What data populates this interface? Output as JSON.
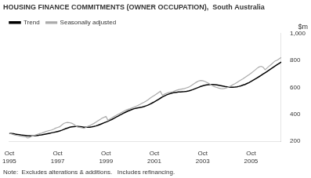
{
  "chart_data": {
    "type": "line",
    "title": "HOUSING FINANCE COMMITMENTS (OWNER OCCUPATION),  South Australia",
    "ylabel": "$m",
    "annotations": [
      "Note:  Excludes alterations & additions.   Includes refinancing."
    ],
    "categories": [
      "Oct\n1995",
      null,
      null,
      null,
      null,
      null,
      null,
      null,
      null,
      null,
      null,
      null,
      null,
      null,
      null,
      null,
      null,
      null,
      null,
      null,
      null,
      null,
      null,
      null,
      "Oct\n1997",
      null,
      null,
      null,
      null,
      null,
      null,
      null,
      null,
      null,
      null,
      null,
      null,
      null,
      null,
      null,
      null,
      null,
      null,
      null,
      null,
      null,
      null,
      null,
      "Oct\n1999",
      null,
      null,
      null,
      null,
      null,
      null,
      null,
      null,
      null,
      null,
      null,
      null,
      null,
      null,
      null,
      null,
      null,
      null,
      null,
      null,
      null,
      null,
      null,
      "Oct\n2001",
      null,
      null,
      null,
      null,
      null,
      null,
      null,
      null,
      null,
      null,
      null,
      null,
      null,
      null,
      null,
      null,
      null,
      null,
      null,
      null,
      null,
      null,
      null,
      "Oct\n2003",
      null,
      null,
      null,
      null,
      null,
      null,
      null,
      null,
      null,
      null,
      null,
      null,
      null,
      null,
      null,
      null,
      null,
      null,
      null,
      null,
      null,
      null,
      null,
      "Oct\n2005",
      null,
      null,
      null,
      null,
      null,
      null,
      null,
      null,
      null,
      null,
      null,
      null,
      null,
      null,
      null
    ],
    "series": [
      {
        "name": "Seasonally adjusted",
        "color": "#aaaaaa",
        "values": [
          262,
          255,
          250,
          246,
          244,
          240,
          238,
          235,
          234,
          225,
          228,
          237,
          241,
          247,
          252,
          257,
          260,
          266,
          272,
          277,
          280,
          284,
          290,
          298,
          303,
          308,
          320,
          332,
          338,
          340,
          338,
          334,
          326,
          315,
          305,
          304,
          300,
          296,
          303,
          312,
          317,
          325,
          333,
          342,
          352,
          362,
          372,
          378,
          385,
          355,
          365,
          375,
          384,
          392,
          400,
          408,
          416,
          424,
          432,
          438,
          442,
          448,
          454,
          460,
          468,
          475,
          483,
          491,
          500,
          510,
          521,
          531,
          541,
          551,
          561,
          571,
          542,
          550,
          556,
          561,
          564,
          568,
          573,
          579,
          583,
          586,
          589,
          592,
          597,
          602,
          610,
          620,
          630,
          640,
          648,
          652,
          650,
          645,
          638,
          630,
          621,
          612,
          605,
          600,
          595,
          592,
          590,
          593,
          598,
          604,
          611,
          620,
          628,
          637,
          646,
          655,
          664,
          674,
          684,
          694,
          705,
          717,
          729,
          742,
          752,
          757,
          750,
          732,
          745,
          758,
          770,
          784,
          797,
          802,
          812,
          822
        ]
      },
      {
        "name": "Trend",
        "color": "#000000",
        "values": [
          260,
          258,
          256,
          253,
          251,
          249,
          247,
          245,
          243,
          241,
          240,
          240,
          241,
          242,
          244,
          246,
          248,
          251,
          254,
          257,
          260,
          263,
          266,
          269,
          273,
          277,
          282,
          288,
          294,
          299,
          304,
          307,
          309,
          310,
          310,
          309,
          307,
          305,
          304,
          304,
          305,
          307,
          310,
          314,
          319,
          325,
          331,
          337,
          343,
          349,
          356,
          363,
          371,
          379,
          387,
          395,
          403,
          411,
          418,
          425,
          431,
          437,
          442,
          446,
          449,
          452,
          455,
          459,
          464,
          470,
          477,
          485,
          493,
          502,
          511,
          520,
          529,
          537,
          544,
          550,
          555,
          559,
          562,
          564,
          566,
          567,
          568,
          569,
          571,
          574,
          578,
          583,
          589,
          595,
          601,
          607,
          612,
          616,
          619,
          621,
          622,
          622,
          621,
          619,
          616,
          613,
          610,
          607,
          605,
          603,
          602,
          602,
          603,
          605,
          608,
          612,
          617,
          622,
          629,
          636,
          644,
          653,
          662,
          671,
          680,
          689,
          699,
          709,
          719,
          729,
          739,
          749,
          759,
          769,
          779,
          789
        ]
      }
    ],
    "ylim": [
      200,
      1000
    ],
    "yticks": [
      200,
      400,
      600,
      800,
      1000
    ],
    "grid": false,
    "legend": "upper left"
  }
}
